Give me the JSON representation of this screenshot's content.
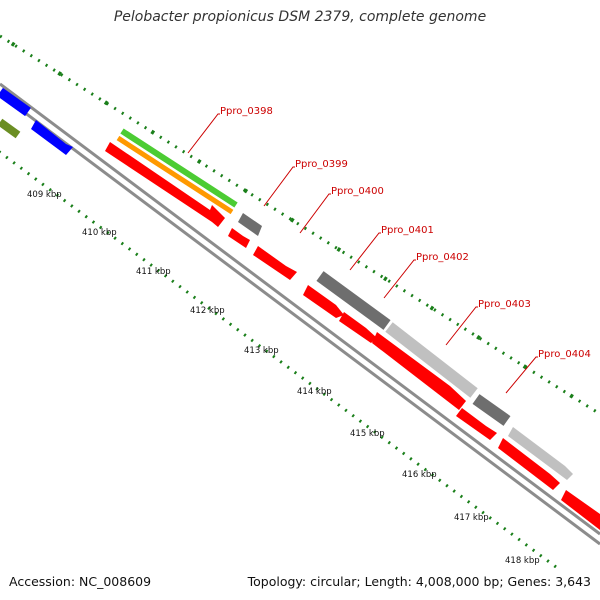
{
  "title": "Pelobacter propionicus DSM 2379, complete genome",
  "footer": {
    "accession": "Accession: NC_008609",
    "summary": "Topology: circular; Length: 4,008,000 bp; Genes: 3,643"
  },
  "colors": {
    "backbone": "#8c8c8c",
    "tick": "#1a7f1a",
    "cds": "#ff0000",
    "gene_dark": "#6e6e6e",
    "gene_light": "#c0c0c0",
    "gene_green": "#4ccc33",
    "gene_orange": "#ff9900",
    "gene_blue": "#0000ff",
    "gene_olive": "#6b8e23",
    "label": "#cc0000"
  },
  "kbp_labels": [
    "409 kbp",
    "410 kbp",
    "411 kbp",
    "412 kbp",
    "413 kbp",
    "414 kbp",
    "415 kbp",
    "416 kbp",
    "417 kbp",
    "418 kbp"
  ],
  "gene_labels": [
    "Ppro_0398",
    "Ppro_0399",
    "Ppro_0400",
    "Ppro_0401",
    "Ppro_0402",
    "Ppro_0403",
    "Ppro_0404"
  ]
}
